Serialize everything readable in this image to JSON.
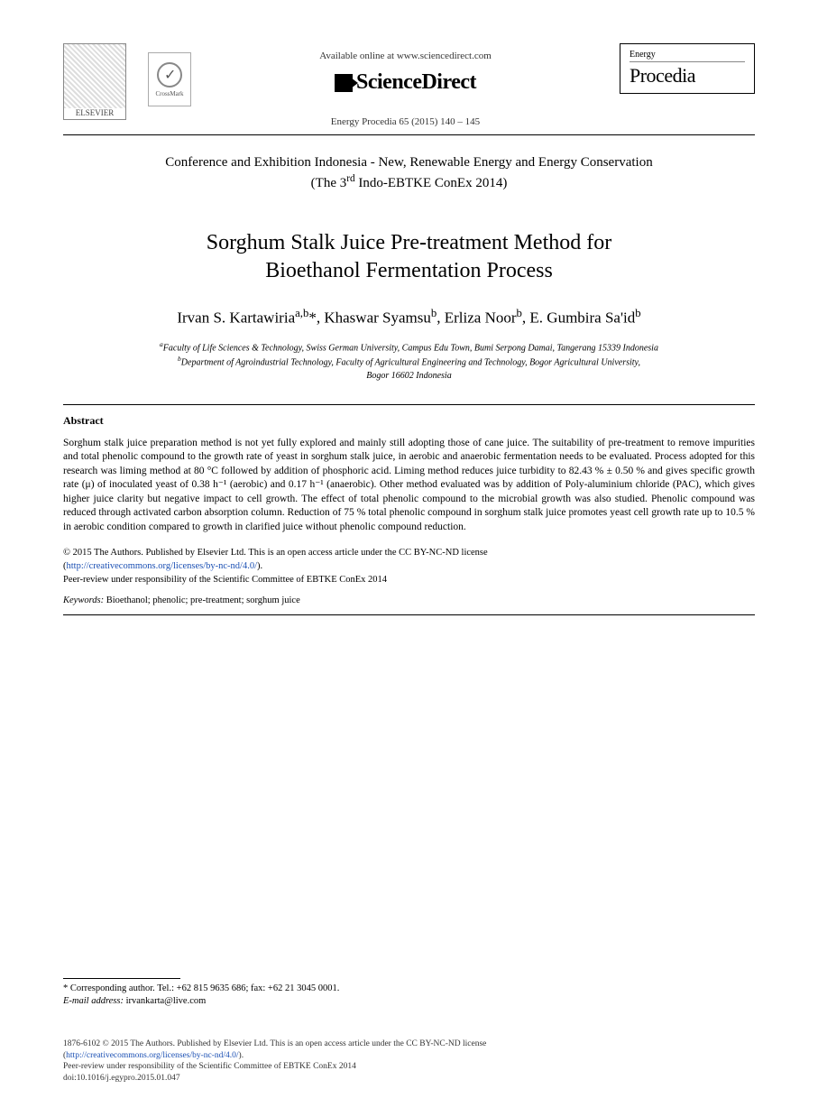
{
  "header": {
    "elsevier_label": "ELSEVIER",
    "crossmark_label": "CrossMark",
    "available_online": "Available online at www.sciencedirect.com",
    "sciencedirect": "ScienceDirect",
    "journal_ref": "Energy Procedia 65 (2015) 140 – 145",
    "journal_category": "Energy",
    "journal_name": "Procedia"
  },
  "conference": {
    "line1": "Conference and Exhibition Indonesia - New, Renewable Energy and Energy Conservation",
    "line2_prefix": "(The 3",
    "line2_sup": "rd",
    "line2_suffix": " Indo-EBTKE ConEx 2014)"
  },
  "title": {
    "line1": "Sorghum Stalk Juice Pre-treatment Method for",
    "line2": "Bioethanol Fermentation Process"
  },
  "authors": {
    "a1_name": "Irvan S. Kartawiria",
    "a1_sup": "a,b",
    "a1_mark": "*, ",
    "a2_name": "Khaswar Syamsu",
    "a2_sup": "b",
    "a3_name": "Erliza Noor",
    "a3_sup": "b",
    "a4_name": "E. Gumbira Sa'id",
    "a4_sup": "b"
  },
  "affiliations": {
    "a_sup": "a",
    "a_text": "Faculty of Life Sciences & Technology, Swiss German University, Campus Edu Town, Bumi Serpong Damai, Tangerang 15339 Indonesia",
    "b_sup": "b",
    "b_text": "Department of Agroindustrial Technology, Faculty of Agricultural Engineering and Technology, Bogor Agricultural University,",
    "b_text2": "Bogor 16602 Indonesia"
  },
  "abstract": {
    "heading": "Abstract",
    "body": "Sorghum stalk juice preparation method is not yet fully explored and mainly still adopting those of cane juice. The suitability of pre-treatment to remove impurities and total phenolic compound to the growth rate of yeast in sorghum stalk juice, in aerobic and anaerobic fermentation needs to be evaluated. Process adopted for this research was liming method at 80 °C followed by addition of phosphoric acid. Liming method reduces juice turbidity to 82.43 % ± 0.50 % and gives specific growth rate (μ) of inoculated yeast of 0.38 h⁻¹ (aerobic) and 0.17 h⁻¹ (anaerobic). Other method evaluated was by addition of Poly-aluminium chloride (PAC), which gives higher juice clarity but negative impact to cell growth. The effect of total phenolic compound to the microbial growth was also studied. Phenolic compound was reduced through activated carbon absorption column. Reduction of 75 % total phenolic compound in sorghum stalk juice promotes yeast cell growth rate up to 10.5 % in aerobic condition compared to growth in clarified juice without phenolic compound reduction."
  },
  "copyright": {
    "line1": "© 2015 The Authors. Published by Elsevier Ltd. This is an open access article under the CC BY-NC-ND license",
    "link_text": "http://creativecommons.org/licenses/by-nc-nd/4.0/",
    "line2": "Peer-review under responsibility of the Scientific Committee of EBTKE ConEx 2014"
  },
  "keywords": {
    "label": "Keywords:",
    "text": " Bioethanol; phenolic; pre-treatment; sorghum juice"
  },
  "footnote": {
    "corr": "* Corresponding author. Tel.: +62 815 9635 686; fax: +62 21 3045 0001.",
    "email_label": "E-mail address:",
    "email": " irvankarta@live.com"
  },
  "footer": {
    "line1": "1876-6102 © 2015 The Authors. Published by Elsevier Ltd. This is an open access article under the CC BY-NC-ND license",
    "link_text": "http://creativecommons.org/licenses/by-nc-nd/4.0/",
    "line2": "Peer-review under responsibility of the Scientific Committee of EBTKE ConEx 2014",
    "doi": "doi:10.1016/j.egypro.2015.01.047"
  }
}
